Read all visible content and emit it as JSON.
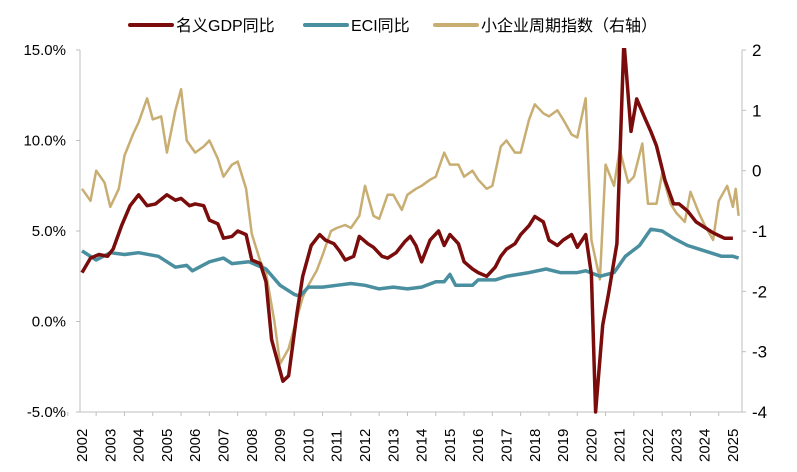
{
  "chart_data": {
    "type": "line",
    "title": "",
    "xlabel": "",
    "ylabel": "",
    "y2label": "",
    "ylim": [
      -5,
      15
    ],
    "y2lim": [
      -4,
      2
    ],
    "yticks": [
      -5,
      0,
      5,
      10,
      15
    ],
    "ytick_labels": [
      "-5.0%",
      "0.0%",
      "5.0%",
      "10.0%",
      "15.0%"
    ],
    "y2ticks": [
      -4,
      -3,
      -2,
      -1,
      0,
      1,
      2
    ],
    "y2tick_labels": [
      "-4",
      "-3",
      "-2",
      "-1",
      "0",
      "1",
      "2"
    ],
    "xlim": [
      2002,
      2025.5
    ],
    "xticks": [
      "2002",
      "2003",
      "2004",
      "2005",
      "2006",
      "2007",
      "2008",
      "2009",
      "2010",
      "2011",
      "2012",
      "2013",
      "2014",
      "2015",
      "2016",
      "2017",
      "2018",
      "2019",
      "2020",
      "2021",
      "2022",
      "2023",
      "2024",
      "2025"
    ],
    "grid": false,
    "legend_position": "top",
    "series": [
      {
        "name": "名义GDP同比",
        "axis": "left",
        "color": "#7a0c0c",
        "points": [
          [
            2002,
            2.7
          ],
          [
            2002.3,
            3.5
          ],
          [
            2002.6,
            3.7
          ],
          [
            2002.9,
            3.6
          ],
          [
            2003.1,
            4.0
          ],
          [
            2003.4,
            5.3
          ],
          [
            2003.7,
            6.4
          ],
          [
            2004.0,
            7.0
          ],
          [
            2004.3,
            6.4
          ],
          [
            2004.6,
            6.5
          ],
          [
            2005.0,
            7.0
          ],
          [
            2005.3,
            6.7
          ],
          [
            2005.5,
            6.8
          ],
          [
            2005.8,
            6.4
          ],
          [
            2006.0,
            6.5
          ],
          [
            2006.3,
            6.4
          ],
          [
            2006.5,
            5.6
          ],
          [
            2006.8,
            5.4
          ],
          [
            2007.0,
            4.6
          ],
          [
            2007.3,
            4.7
          ],
          [
            2007.5,
            5.0
          ],
          [
            2007.8,
            4.8
          ],
          [
            2008.0,
            3.4
          ],
          [
            2008.3,
            3.2
          ],
          [
            2008.5,
            2.2
          ],
          [
            2008.7,
            -1.0
          ],
          [
            2009.1,
            -3.3
          ],
          [
            2009.3,
            -3.0
          ],
          [
            2009.6,
            0.5
          ],
          [
            2009.8,
            2.5
          ],
          [
            2010.1,
            4.2
          ],
          [
            2010.4,
            4.8
          ],
          [
            2010.6,
            4.5
          ],
          [
            2010.9,
            4.3
          ],
          [
            2011.1,
            3.9
          ],
          [
            2011.3,
            3.4
          ],
          [
            2011.6,
            3.6
          ],
          [
            2011.8,
            4.7
          ],
          [
            2012.1,
            4.3
          ],
          [
            2012.3,
            4.1
          ],
          [
            2012.6,
            3.6
          ],
          [
            2012.8,
            3.5
          ],
          [
            2013.1,
            3.8
          ],
          [
            2013.4,
            4.4
          ],
          [
            2013.6,
            4.7
          ],
          [
            2013.8,
            4.2
          ],
          [
            2014.0,
            3.3
          ],
          [
            2014.3,
            4.5
          ],
          [
            2014.6,
            5.0
          ],
          [
            2014.8,
            4.2
          ],
          [
            2015.0,
            4.8
          ],
          [
            2015.3,
            4.3
          ],
          [
            2015.5,
            3.3
          ],
          [
            2015.8,
            2.9
          ],
          [
            2016.0,
            2.7
          ],
          [
            2016.3,
            2.5
          ],
          [
            2016.6,
            3.0
          ],
          [
            2016.8,
            3.6
          ],
          [
            2017.0,
            4.0
          ],
          [
            2017.3,
            4.3
          ],
          [
            2017.5,
            4.8
          ],
          [
            2017.8,
            5.3
          ],
          [
            2018.0,
            5.8
          ],
          [
            2018.3,
            5.5
          ],
          [
            2018.5,
            4.5
          ],
          [
            2018.8,
            4.2
          ],
          [
            2019.0,
            4.5
          ],
          [
            2019.3,
            4.8
          ],
          [
            2019.5,
            4.1
          ],
          [
            2019.8,
            4.8
          ],
          [
            2020.0,
            2.6
          ],
          [
            2020.15,
            -5.0
          ],
          [
            2020.4,
            -0.2
          ],
          [
            2020.6,
            1.5
          ],
          [
            2020.9,
            4.3
          ],
          [
            2021.15,
            15.5
          ],
          [
            2021.4,
            10.5
          ],
          [
            2021.6,
            12.3
          ],
          [
            2021.9,
            11.2
          ],
          [
            2022.1,
            10.5
          ],
          [
            2022.3,
            9.7
          ],
          [
            2022.6,
            7.8
          ],
          [
            2022.9,
            6.5
          ],
          [
            2023.1,
            6.5
          ],
          [
            2023.4,
            6.1
          ],
          [
            2023.7,
            5.5
          ],
          [
            2024.0,
            5.2
          ],
          [
            2024.3,
            4.9
          ],
          [
            2024.7,
            4.6
          ],
          [
            2025.0,
            4.6
          ]
        ]
      },
      {
        "name": "ECI同比",
        "axis": "left",
        "color": "#4a8fa0",
        "points": [
          [
            2002,
            3.9
          ],
          [
            2002.5,
            3.4
          ],
          [
            2003.0,
            3.8
          ],
          [
            2003.5,
            3.7
          ],
          [
            2004.0,
            3.8
          ],
          [
            2004.7,
            3.6
          ],
          [
            2005.3,
            3.0
          ],
          [
            2005.7,
            3.1
          ],
          [
            2005.9,
            2.8
          ],
          [
            2006.5,
            3.3
          ],
          [
            2007.0,
            3.5
          ],
          [
            2007.3,
            3.2
          ],
          [
            2007.9,
            3.3
          ],
          [
            2008.5,
            2.9
          ],
          [
            2009.0,
            2.0
          ],
          [
            2009.5,
            1.5
          ],
          [
            2009.7,
            1.4
          ],
          [
            2010.0,
            1.9
          ],
          [
            2010.5,
            1.9
          ],
          [
            2011.0,
            2.0
          ],
          [
            2011.5,
            2.1
          ],
          [
            2012.0,
            2.0
          ],
          [
            2012.5,
            1.8
          ],
          [
            2013.0,
            1.9
          ],
          [
            2013.5,
            1.8
          ],
          [
            2014.0,
            1.9
          ],
          [
            2014.5,
            2.2
          ],
          [
            2014.8,
            2.2
          ],
          [
            2015.0,
            2.6
          ],
          [
            2015.2,
            2.0
          ],
          [
            2015.8,
            2.0
          ],
          [
            2016.0,
            2.3
          ],
          [
            2016.6,
            2.3
          ],
          [
            2017.0,
            2.5
          ],
          [
            2017.8,
            2.7
          ],
          [
            2018.4,
            2.9
          ],
          [
            2018.9,
            2.7
          ],
          [
            2019.5,
            2.7
          ],
          [
            2019.8,
            2.8
          ],
          [
            2020.3,
            2.5
          ],
          [
            2020.8,
            2.7
          ],
          [
            2021.2,
            3.6
          ],
          [
            2021.7,
            4.2
          ],
          [
            2022.1,
            5.1
          ],
          [
            2022.5,
            5.0
          ],
          [
            2022.9,
            4.6
          ],
          [
            2023.4,
            4.2
          ],
          [
            2023.8,
            4.0
          ],
          [
            2024.2,
            3.8
          ],
          [
            2024.6,
            3.6
          ],
          [
            2025.0,
            3.6
          ],
          [
            2025.2,
            3.5
          ]
        ]
      },
      {
        "name": "小企业周期指数（右轴）",
        "axis": "right",
        "color": "#c8ae72",
        "points": [
          [
            2002,
            -0.3
          ],
          [
            2002.3,
            -0.5
          ],
          [
            2002.5,
            0
          ],
          [
            2002.8,
            -0.2
          ],
          [
            2003.0,
            -0.6
          ],
          [
            2003.3,
            -0.3
          ],
          [
            2003.5,
            0.25
          ],
          [
            2003.8,
            0.6
          ],
          [
            2004.0,
            0.8
          ],
          [
            2004.3,
            1.2
          ],
          [
            2004.5,
            0.85
          ],
          [
            2004.8,
            0.9
          ],
          [
            2005.0,
            0.3
          ],
          [
            2005.3,
            1.0
          ],
          [
            2005.5,
            1.35
          ],
          [
            2005.7,
            0.5
          ],
          [
            2006.0,
            0.3
          ],
          [
            2006.3,
            0.4
          ],
          [
            2006.5,
            0.5
          ],
          [
            2006.8,
            0.2
          ],
          [
            2007.0,
            -0.1
          ],
          [
            2007.3,
            0.1
          ],
          [
            2007.5,
            0.15
          ],
          [
            2007.8,
            -0.3
          ],
          [
            2008.0,
            -1.05
          ],
          [
            2008.3,
            -1.5
          ],
          [
            2008.5,
            -1.7
          ],
          [
            2008.8,
            -2.5
          ],
          [
            2009.0,
            -3.2
          ],
          [
            2009.3,
            -2.95
          ],
          [
            2009.5,
            -2.6
          ],
          [
            2009.8,
            -2.1
          ],
          [
            2010.0,
            -1.9
          ],
          [
            2010.3,
            -1.65
          ],
          [
            2010.5,
            -1.4
          ],
          [
            2010.8,
            -1.0
          ],
          [
            2011.0,
            -0.95
          ],
          [
            2011.3,
            -0.9
          ],
          [
            2011.5,
            -0.95
          ],
          [
            2011.8,
            -0.75
          ],
          [
            2012.0,
            -0.25
          ],
          [
            2012.3,
            -0.75
          ],
          [
            2012.5,
            -0.8
          ],
          [
            2012.8,
            -0.4
          ],
          [
            2013.0,
            -0.4
          ],
          [
            2013.3,
            -0.65
          ],
          [
            2013.5,
            -0.4
          ],
          [
            2013.8,
            -0.3
          ],
          [
            2014.0,
            -0.25
          ],
          [
            2014.3,
            -0.15
          ],
          [
            2014.5,
            -0.1
          ],
          [
            2014.8,
            0.3
          ],
          [
            2015.0,
            0.1
          ],
          [
            2015.3,
            0.1
          ],
          [
            2015.5,
            -0.1
          ],
          [
            2015.8,
            0
          ],
          [
            2016.0,
            -0.15
          ],
          [
            2016.3,
            -0.3
          ],
          [
            2016.5,
            -0.25
          ],
          [
            2016.8,
            0.4
          ],
          [
            2017.0,
            0.5
          ],
          [
            2017.3,
            0.3
          ],
          [
            2017.5,
            0.3
          ],
          [
            2017.8,
            0.85
          ],
          [
            2018.0,
            1.1
          ],
          [
            2018.3,
            0.95
          ],
          [
            2018.5,
            0.9
          ],
          [
            2018.8,
            1.0
          ],
          [
            2019.0,
            0.85
          ],
          [
            2019.3,
            0.6
          ],
          [
            2019.5,
            0.55
          ],
          [
            2019.8,
            1.2
          ],
          [
            2020.0,
            -1.15
          ],
          [
            2020.3,
            -1.8
          ],
          [
            2020.5,
            0.1
          ],
          [
            2020.8,
            -0.25
          ],
          [
            2021.0,
            0.35
          ],
          [
            2021.3,
            -0.2
          ],
          [
            2021.5,
            -0.1
          ],
          [
            2021.8,
            0.45
          ],
          [
            2022.0,
            -0.55
          ],
          [
            2022.3,
            -0.55
          ],
          [
            2022.5,
            -0.05
          ],
          [
            2022.8,
            -0.55
          ],
          [
            2023.0,
            -0.7
          ],
          [
            2023.3,
            -0.85
          ],
          [
            2023.5,
            -0.35
          ],
          [
            2023.8,
            -0.7
          ],
          [
            2024.0,
            -0.9
          ],
          [
            2024.3,
            -1.15
          ],
          [
            2024.5,
            -0.5
          ],
          [
            2024.8,
            -0.25
          ],
          [
            2025.0,
            -0.6
          ],
          [
            2025.1,
            -0.3
          ],
          [
            2025.2,
            -0.75
          ]
        ]
      }
    ]
  }
}
